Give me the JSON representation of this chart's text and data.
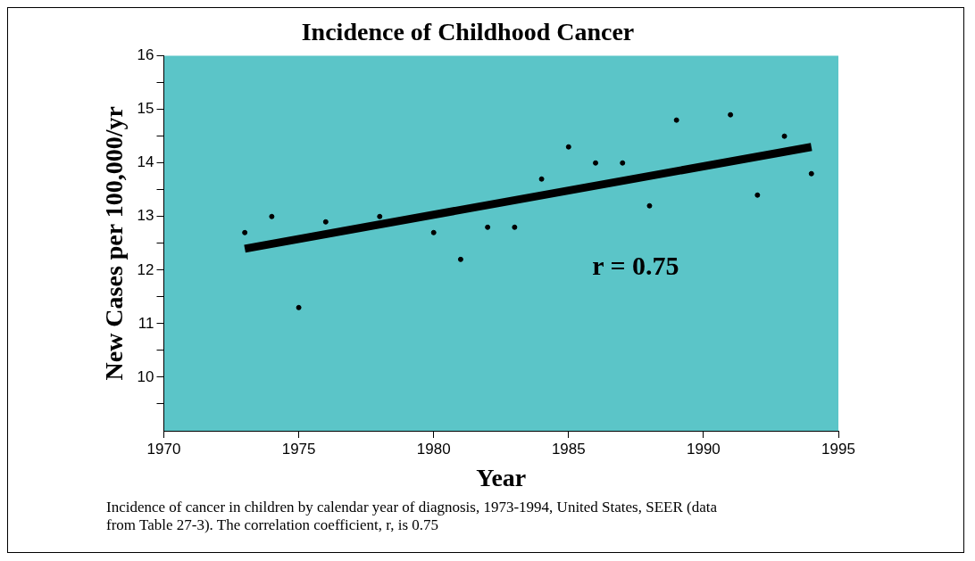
{
  "chart_data": {
    "type": "scatter",
    "title": "Incidence of Childhood Cancer",
    "xlabel": "Year",
    "ylabel": "New Cases per 100,000/yr",
    "x": [
      1973,
      1974,
      1975,
      1976,
      1978,
      1980,
      1981,
      1982,
      1983,
      1984,
      1985,
      1986,
      1987,
      1988,
      1989,
      1991,
      1992,
      1993,
      1994
    ],
    "series": [
      {
        "color": "#000000",
        "values": [
          12.7,
          13.0,
          11.3,
          12.9,
          13.0,
          12.7,
          12.2,
          12.8,
          12.8,
          13.7,
          14.3,
          14.0,
          14.0,
          13.2,
          14.8,
          14.9,
          13.4,
          14.5,
          13.8
        ]
      },
      {
        "type": "line",
        "color": "#000000",
        "marker": "none",
        "x": [
          1973,
          1994
        ],
        "values": [
          12.4,
          14.3
        ]
      }
    ],
    "xlim": [
      1970,
      1995
    ],
    "xticks": [
      1970,
      1975,
      1980,
      1985,
      1990,
      1995
    ],
    "ylim": [
      9,
      16
    ],
    "yticks": [
      {
        "value": 9.5,
        "label": null
      },
      10,
      {
        "value": 10.5,
        "label": null
      },
      11,
      {
        "value": 11.5,
        "label": null
      },
      12,
      {
        "value": 12.5,
        "label": null
      },
      13,
      {
        "value": 13.5,
        "label": null
      },
      14,
      {
        "value": 14.5,
        "label": null
      },
      15,
      {
        "value": 15.5,
        "label": null
      },
      16
    ],
    "grid": false,
    "legend": false,
    "marker": "circle",
    "annotations": [
      "r = 0.75",
      "Incidence of cancer in children by calendar year of diagnosis, 1973-1994, United States, SEER (data from Table 27-3).  The correlation coefficient, r, is 0.75"
    ]
  }
}
